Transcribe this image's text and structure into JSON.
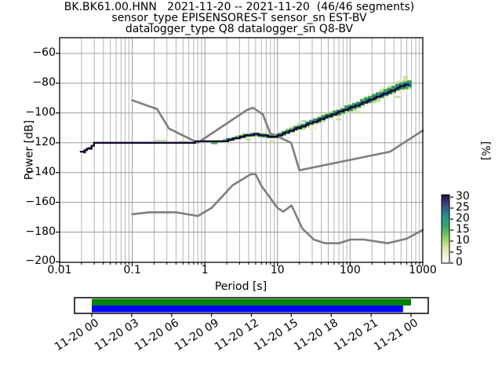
{
  "title": {
    "line1": "BK.BK61.00.HNN   2021-11-20 -- 2021-11-20  (46/46 segments)",
    "line2": "sensor_type EPISENSORES-T sensor_sn EST-BV",
    "line3": "datalogger_type Q8 datalogger_sn Q8-BV"
  },
  "axes": {
    "xlabel": "Period [s]",
    "ylabel": "Power [dB]",
    "x_tick_labels": [
      "0.01",
      "0.1",
      "1",
      "10",
      "100",
      "1000"
    ],
    "y_tick_labels": [
      "−60",
      "−80",
      "−100",
      "−120",
      "−140",
      "−160",
      "−180",
      "−200"
    ]
  },
  "colorbar": {
    "label": "[%]",
    "tick_labels": [
      "30",
      "25",
      "20",
      "15",
      "10",
      "5",
      "0"
    ],
    "gradient_bottom_to_top": [
      "#ffffff",
      "#eff3cf",
      "#d9e8a8",
      "#a5d46d",
      "#62bb5e",
      "#35a36b",
      "#26998a",
      "#2f6a8e",
      "#3a3b70",
      "#230c3f"
    ]
  },
  "timeline": {
    "tick_labels": [
      "11-20 00",
      "11-20 03",
      "11-20 06",
      "11-20 09",
      "11-20 12",
      "11-20 15",
      "11-20 18",
      "11-20 21",
      "11-21 00"
    ],
    "coverage_bar": {
      "color": "#068206",
      "start_frac": 0.0,
      "end_frac": 1.0
    },
    "used_bar": {
      "color": "#0000ff",
      "start_frac": 0.0,
      "end_frac": 0.975
    }
  },
  "chart_data": {
    "type": "line",
    "title": "BK.BK61.00.HNN PPSD 2021-11-20, 46/46 segments",
    "xlabel": "Period [s]",
    "ylabel": "Power [dB]",
    "xscale": "log",
    "xlim": [
      0.01,
      1000
    ],
    "ylim": [
      -200,
      -49.5
    ],
    "x_ticks": [
      0.01,
      0.1,
      1,
      10,
      100,
      1000
    ],
    "y_ticks": [
      -60,
      -80,
      -100,
      -120,
      -140,
      -160,
      -180,
      -200
    ],
    "colorbar_ticks": [
      30,
      25,
      20,
      15,
      10,
      5,
      0
    ],
    "grid": "x-major+minor, y-major, gray",
    "series": [
      {
        "name": "NHNM high noise model",
        "color": "#7f7f7f",
        "width": 2.6,
        "points": [
          [
            0.1,
            -91.5
          ],
          [
            0.22,
            -97.4
          ],
          [
            0.32,
            -110.5
          ],
          [
            0.8,
            -120
          ],
          [
            3.8,
            -98
          ],
          [
            4.6,
            -96.5
          ],
          [
            6.3,
            -101
          ],
          [
            7.9,
            -113.5
          ],
          [
            15.4,
            -120
          ],
          [
            20,
            -138.5
          ],
          [
            354.8,
            -126
          ],
          [
            1000,
            -111.8
          ]
        ]
      },
      {
        "name": "NLNM low noise model",
        "color": "#7f7f7f",
        "width": 2.6,
        "points": [
          [
            0.1,
            -168
          ],
          [
            0.17,
            -166.7
          ],
          [
            0.4,
            -166.7
          ],
          [
            0.8,
            -169.2
          ],
          [
            1.24,
            -163.7
          ],
          [
            2.4,
            -148.6
          ],
          [
            4.3,
            -141.1
          ],
          [
            5,
            -141.1
          ],
          [
            6,
            -149
          ],
          [
            10,
            -163.8
          ],
          [
            12,
            -166.2
          ],
          [
            15.6,
            -162.1
          ],
          [
            21.9,
            -177.5
          ],
          [
            31.6,
            -185
          ],
          [
            45,
            -187.5
          ],
          [
            70,
            -187.5
          ],
          [
            101,
            -185
          ],
          [
            154,
            -185
          ],
          [
            328,
            -187.5
          ],
          [
            600,
            -184.4
          ],
          [
            1000,
            -178.5
          ]
        ]
      },
      {
        "name": "PPSD mode",
        "color": "#16092c",
        "width": 2.3,
        "points": [
          [
            0.019,
            -126.5
          ],
          [
            0.021,
            -126
          ],
          [
            0.023,
            -124.8
          ],
          [
            0.026,
            -123.5
          ],
          [
            0.028,
            -121.5
          ],
          [
            0.03,
            -119.7
          ],
          [
            0.05,
            -119.7
          ],
          [
            0.1,
            -119.7
          ],
          [
            0.3,
            -119.6
          ],
          [
            0.7,
            -119.5
          ],
          [
            1.2,
            -119.4
          ],
          [
            1.8,
            -119
          ],
          [
            2.3,
            -117.8
          ],
          [
            3,
            -116.2
          ],
          [
            4,
            -114.8
          ],
          [
            5,
            -114.4
          ],
          [
            6,
            -114.8
          ],
          [
            7,
            -115.4
          ],
          [
            8,
            -115.8
          ],
          [
            9,
            -115.7
          ],
          [
            10,
            -115.3
          ],
          [
            12,
            -113.8
          ],
          [
            15,
            -112
          ],
          [
            18,
            -110.5
          ],
          [
            22,
            -108.8
          ],
          [
            27,
            -107
          ],
          [
            33,
            -105.5
          ],
          [
            40,
            -104
          ],
          [
            50,
            -102
          ],
          [
            65,
            -100
          ],
          [
            80,
            -98.2
          ],
          [
            100,
            -96.5
          ],
          [
            130,
            -94.3
          ],
          [
            160,
            -92.5
          ],
          [
            200,
            -90.5
          ],
          [
            250,
            -88.5
          ],
          [
            320,
            -86.3
          ],
          [
            400,
            -84.2
          ],
          [
            480,
            -82.5
          ],
          [
            560,
            -81.2
          ],
          [
            620,
            -80.7
          ],
          [
            700,
            -80.7
          ]
        ]
      }
    ],
    "histogram": {
      "percent_scale_max": 30,
      "spread_start_period": 1.9,
      "spread_db_at_start": 1.5,
      "spread_db_at_end": 4.5,
      "cell_colors": [
        "#f0f3d6",
        "#b9df8d",
        "#4aa44e",
        "#2b8c84",
        "#1c0f30"
      ],
      "extra_cells": [
        [
          0.022,
          -126.3,
          4,
          3,
          "#3f2c5e"
        ],
        [
          0.026,
          -123.6,
          4,
          3,
          "#4a3a6b"
        ],
        [
          0.25,
          -118.5,
          16,
          2,
          "#b9df8d"
        ],
        [
          0.5,
          -119.0,
          8,
          2,
          "#d9e8a8"
        ],
        [
          1.35,
          -120.2,
          8,
          3,
          "#4aa44e"
        ],
        [
          1.6,
          -118.7,
          7,
          2,
          "#b9df8d"
        ],
        [
          2.1,
          -117.6,
          6,
          3,
          "#2b8c84"
        ]
      ]
    }
  }
}
